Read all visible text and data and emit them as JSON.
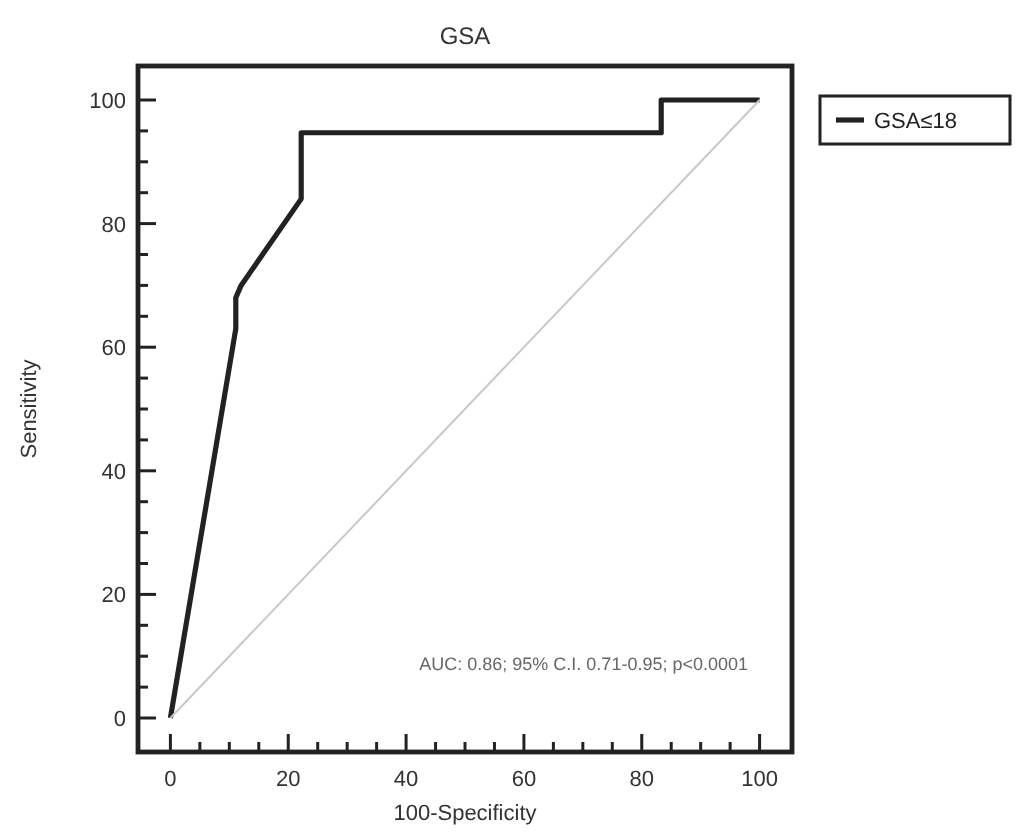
{
  "chart_data": {
    "type": "line",
    "title": "GSA",
    "xlabel": "100-Specificity",
    "ylabel": "Sensitivity",
    "xlim": [
      -5.5,
      105.5
    ],
    "ylim": [
      -5.5,
      105.5
    ],
    "xticks": [
      0,
      {
        "value": 5,
        "label": null
      },
      {
        "value": 10,
        "label": null
      },
      {
        "value": 15,
        "label": null
      },
      20,
      {
        "value": 25,
        "label": null
      },
      {
        "value": 30,
        "label": null
      },
      {
        "value": 35,
        "label": null
      },
      40,
      {
        "value": 45,
        "label": null
      },
      {
        "value": 50,
        "label": null
      },
      {
        "value": 55,
        "label": null
      },
      60,
      {
        "value": 65,
        "label": null
      },
      {
        "value": 70,
        "label": null
      },
      {
        "value": 75,
        "label": null
      },
      80,
      {
        "value": 85,
        "label": null
      },
      {
        "value": 90,
        "label": null
      },
      {
        "value": 95,
        "label": null
      },
      100
    ],
    "yticks": [
      0,
      {
        "value": 5,
        "label": null
      },
      {
        "value": 10,
        "label": null
      },
      {
        "value": 15,
        "label": null
      },
      20,
      {
        "value": 25,
        "label": null
      },
      {
        "value": 30,
        "label": null
      },
      {
        "value": 35,
        "label": null
      },
      40,
      {
        "value": 45,
        "label": null
      },
      {
        "value": 50,
        "label": null
      },
      {
        "value": 55,
        "label": null
      },
      60,
      {
        "value": 65,
        "label": null
      },
      {
        "value": 70,
        "label": null
      },
      {
        "value": 75,
        "label": null
      },
      80,
      {
        "value": 85,
        "label": null
      },
      {
        "value": 90,
        "label": null
      },
      {
        "value": 95,
        "label": null
      },
      100
    ],
    "grid": false,
    "legend": "top right",
    "marker": "none",
    "series": [
      {
        "name": "GSA≤18",
        "color": "#222222",
        "line_style": "solid",
        "x": [
          0,
          11.1,
          11.1,
          12,
          22.2,
          22.2,
          83.3,
          83.3,
          100
        ],
        "values": [
          0,
          63,
          68,
          70,
          84,
          94.7,
          94.7,
          100,
          100
        ]
      },
      {
        "color": "#c8c8c8",
        "line_style": "solid",
        "x": [
          0,
          100
        ],
        "values": [
          0,
          100
        ]
      }
    ],
    "annotations": [
      "AUC: 0.86; 95% C.I. 0.71-0.95; p<0.0001"
    ]
  }
}
